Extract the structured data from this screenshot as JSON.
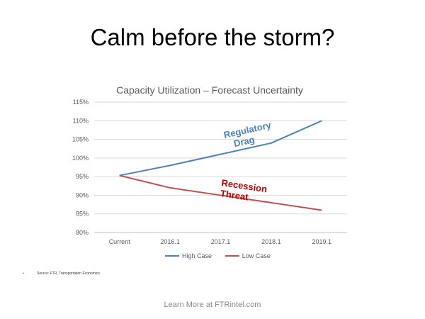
{
  "slide": {
    "title": "Calm before the storm?",
    "footnote_bullet": "•",
    "footnote": "Source: FTR, Transportation Economics",
    "footer": "Learn More at FTRintel.com"
  },
  "chart_data": {
    "type": "line",
    "title": "Capacity Utilization – Forecast Uncertainty",
    "categories": [
      "Current",
      "2016.1",
      "2017.1",
      "2018.1",
      "2019.1"
    ],
    "series": [
      {
        "name": "High Case",
        "color": "#4f81bd",
        "values": [
          95.3,
          98,
          101,
          104,
          110
        ]
      },
      {
        "name": "Low Case",
        "color": "#c0504d",
        "values": [
          95.3,
          92,
          90,
          88,
          86
        ]
      }
    ],
    "ylim": [
      80,
      115
    ],
    "yticks": [
      80,
      85,
      90,
      95,
      100,
      105,
      110,
      115
    ],
    "y_format": "percent",
    "grid": true,
    "legend": "bottom",
    "annotations": [
      {
        "line1": "Regulatory",
        "line2": "Drag",
        "color": "#4f81bd",
        "series": 0
      },
      {
        "line1": "Recession",
        "line2": "Threat",
        "color": "#c00000",
        "series": 1
      }
    ]
  }
}
